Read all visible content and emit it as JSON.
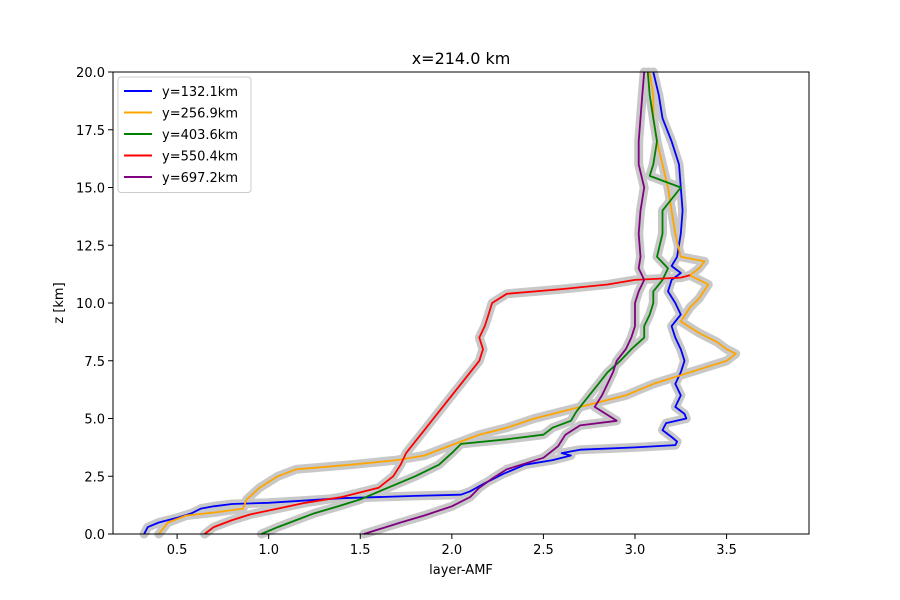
{
  "chart_data": {
    "type": "line",
    "title": "x=214.0 km",
    "xlabel": "layer-AMF",
    "ylabel": "z [km]",
    "xlim": [
      0.15,
      3.95
    ],
    "ylim": [
      0,
      20
    ],
    "xticks": [
      "0.5",
      "1.0",
      "1.5",
      "2.0",
      "2.5",
      "3.0",
      "3.5"
    ],
    "yticks": [
      "0.0",
      "2.5",
      "5.0",
      "7.5",
      "10.0",
      "12.5",
      "15.0",
      "17.5",
      "20.0"
    ],
    "legend_position": "top-left",
    "uncertainty_band_color": "#c8c8c8",
    "series": [
      {
        "name": "y=132.1km",
        "color": "#0000ff",
        "points": [
          [
            0.32,
            0.0
          ],
          [
            0.34,
            0.3
          ],
          [
            0.4,
            0.5
          ],
          [
            0.5,
            0.7
          ],
          [
            0.58,
            0.9
          ],
          [
            0.63,
            1.1
          ],
          [
            0.7,
            1.2
          ],
          [
            0.8,
            1.3
          ],
          [
            1.0,
            1.35
          ],
          [
            1.4,
            1.55
          ],
          [
            1.8,
            1.65
          ],
          [
            2.05,
            1.7
          ],
          [
            2.1,
            1.85
          ],
          [
            2.18,
            2.2
          ],
          [
            2.28,
            2.6
          ],
          [
            2.4,
            3.0
          ],
          [
            2.55,
            3.2
          ],
          [
            2.65,
            3.4
          ],
          [
            2.6,
            3.5
          ],
          [
            2.7,
            3.65
          ],
          [
            3.0,
            3.75
          ],
          [
            3.22,
            3.85
          ],
          [
            3.23,
            4.0
          ],
          [
            3.2,
            4.2
          ],
          [
            3.15,
            4.5
          ],
          [
            3.17,
            4.8
          ],
          [
            3.28,
            5.0
          ],
          [
            3.27,
            5.2
          ],
          [
            3.22,
            5.5
          ],
          [
            3.25,
            6.0
          ],
          [
            3.22,
            6.5
          ],
          [
            3.25,
            7.0
          ],
          [
            3.27,
            7.5
          ],
          [
            3.25,
            8.0
          ],
          [
            3.22,
            8.5
          ],
          [
            3.2,
            9.0
          ],
          [
            3.25,
            9.5
          ],
          [
            3.22,
            10.0
          ],
          [
            3.18,
            10.5
          ],
          [
            3.2,
            11.0
          ],
          [
            3.25,
            11.3
          ],
          [
            3.2,
            11.6
          ],
          [
            3.23,
            12.0
          ],
          [
            3.25,
            13.0
          ],
          [
            3.26,
            14.0
          ],
          [
            3.25,
            15.0
          ],
          [
            3.24,
            16.0
          ],
          [
            3.2,
            17.0
          ],
          [
            3.15,
            18.0
          ],
          [
            3.13,
            19.0
          ],
          [
            3.1,
            20.0
          ]
        ]
      },
      {
        "name": "y=256.9km",
        "color": "#ffa500",
        "points": [
          [
            0.4,
            0.0
          ],
          [
            0.45,
            0.5
          ],
          [
            0.55,
            0.8
          ],
          [
            0.72,
            0.95
          ],
          [
            0.86,
            1.1
          ],
          [
            0.88,
            1.5
          ],
          [
            0.95,
            2.0
          ],
          [
            1.05,
            2.5
          ],
          [
            1.15,
            2.8
          ],
          [
            1.45,
            3.0
          ],
          [
            1.7,
            3.2
          ],
          [
            1.85,
            3.4
          ],
          [
            1.95,
            3.7
          ],
          [
            2.05,
            4.0
          ],
          [
            2.15,
            4.3
          ],
          [
            2.3,
            4.6
          ],
          [
            2.45,
            5.0
          ],
          [
            2.6,
            5.3
          ],
          [
            2.75,
            5.6
          ],
          [
            2.95,
            6.0
          ],
          [
            3.1,
            6.5
          ],
          [
            3.3,
            7.0
          ],
          [
            3.5,
            7.5
          ],
          [
            3.55,
            7.8
          ],
          [
            3.5,
            8.0
          ],
          [
            3.45,
            8.3
          ],
          [
            3.35,
            8.7
          ],
          [
            3.25,
            9.2
          ],
          [
            3.3,
            9.8
          ],
          [
            3.35,
            10.2
          ],
          [
            3.4,
            10.8
          ],
          [
            3.3,
            11.2
          ],
          [
            3.35,
            11.5
          ],
          [
            3.38,
            11.8
          ],
          [
            3.25,
            12.0
          ],
          [
            3.22,
            13.0
          ],
          [
            3.2,
            14.0
          ],
          [
            3.18,
            15.0
          ],
          [
            3.15,
            16.0
          ],
          [
            3.12,
            17.0
          ],
          [
            3.1,
            18.0
          ],
          [
            3.1,
            19.0
          ],
          [
            3.08,
            20.0
          ]
        ]
      },
      {
        "name": "y=403.6km",
        "color": "#008000",
        "points": [
          [
            0.96,
            0.0
          ],
          [
            1.05,
            0.3
          ],
          [
            1.15,
            0.6
          ],
          [
            1.25,
            0.9
          ],
          [
            1.38,
            1.2
          ],
          [
            1.5,
            1.5
          ],
          [
            1.65,
            2.0
          ],
          [
            1.8,
            2.5
          ],
          [
            1.93,
            3.0
          ],
          [
            2.0,
            3.5
          ],
          [
            2.05,
            3.9
          ],
          [
            2.3,
            4.1
          ],
          [
            2.5,
            4.3
          ],
          [
            2.55,
            4.6
          ],
          [
            2.65,
            4.9
          ],
          [
            2.68,
            5.3
          ],
          [
            2.75,
            6.0
          ],
          [
            2.8,
            6.5
          ],
          [
            2.85,
            7.0
          ],
          [
            2.92,
            7.5
          ],
          [
            2.98,
            8.0
          ],
          [
            3.05,
            8.5
          ],
          [
            3.05,
            9.0
          ],
          [
            3.08,
            9.5
          ],
          [
            3.1,
            10.0
          ],
          [
            3.1,
            10.5
          ],
          [
            3.15,
            11.0
          ],
          [
            3.18,
            11.5
          ],
          [
            3.12,
            12.0
          ],
          [
            3.15,
            13.0
          ],
          [
            3.15,
            14.0
          ],
          [
            3.25,
            15.0
          ],
          [
            3.08,
            15.5
          ],
          [
            3.1,
            16.0
          ],
          [
            3.12,
            17.0
          ],
          [
            3.1,
            18.0
          ],
          [
            3.08,
            19.0
          ],
          [
            3.07,
            20.0
          ]
        ]
      },
      {
        "name": "y=550.4km",
        "color": "#ff0000",
        "points": [
          [
            0.65,
            0.0
          ],
          [
            0.7,
            0.3
          ],
          [
            0.8,
            0.6
          ],
          [
            0.9,
            0.85
          ],
          [
            1.05,
            1.1
          ],
          [
            1.2,
            1.35
          ],
          [
            1.4,
            1.6
          ],
          [
            1.6,
            2.0
          ],
          [
            1.68,
            2.5
          ],
          [
            1.72,
            3.0
          ],
          [
            1.75,
            3.5
          ],
          [
            1.8,
            4.0
          ],
          [
            1.85,
            4.5
          ],
          [
            1.9,
            5.0
          ],
          [
            1.95,
            5.5
          ],
          [
            2.0,
            6.0
          ],
          [
            2.05,
            6.5
          ],
          [
            2.1,
            7.0
          ],
          [
            2.15,
            7.5
          ],
          [
            2.17,
            8.0
          ],
          [
            2.15,
            8.5
          ],
          [
            2.18,
            9.0
          ],
          [
            2.2,
            9.5
          ],
          [
            2.22,
            10.0
          ],
          [
            2.3,
            10.4
          ],
          [
            2.6,
            10.6
          ],
          [
            2.85,
            10.8
          ],
          [
            3.0,
            11.0
          ],
          [
            3.25,
            11.1
          ],
          [
            3.3,
            11.2
          ]
        ]
      },
      {
        "name": "y=697.2km",
        "color": "#800080",
        "points": [
          [
            1.52,
            0.0
          ],
          [
            1.6,
            0.2
          ],
          [
            1.72,
            0.5
          ],
          [
            1.85,
            0.8
          ],
          [
            2.0,
            1.2
          ],
          [
            2.1,
            1.6
          ],
          [
            2.15,
            2.0
          ],
          [
            2.22,
            2.4
          ],
          [
            2.3,
            2.8
          ],
          [
            2.38,
            3.0
          ],
          [
            2.5,
            3.3
          ],
          [
            2.58,
            3.8
          ],
          [
            2.62,
            4.3
          ],
          [
            2.7,
            4.7
          ],
          [
            2.9,
            4.9
          ],
          [
            2.78,
            5.5
          ],
          [
            2.82,
            6.0
          ],
          [
            2.85,
            6.5
          ],
          [
            2.88,
            7.0
          ],
          [
            2.9,
            7.5
          ],
          [
            2.95,
            8.0
          ],
          [
            2.98,
            8.5
          ],
          [
            3.0,
            9.0
          ],
          [
            3.0,
            9.5
          ],
          [
            3.0,
            10.0
          ],
          [
            3.02,
            10.5
          ],
          [
            3.05,
            11.0
          ],
          [
            3.02,
            11.5
          ],
          [
            3.03,
            12.0
          ],
          [
            3.02,
            13.0
          ],
          [
            3.03,
            14.0
          ],
          [
            3.05,
            15.0
          ],
          [
            3.02,
            16.0
          ],
          [
            3.02,
            17.0
          ],
          [
            3.03,
            18.0
          ],
          [
            3.04,
            19.0
          ],
          [
            3.05,
            20.0
          ]
        ]
      }
    ]
  }
}
